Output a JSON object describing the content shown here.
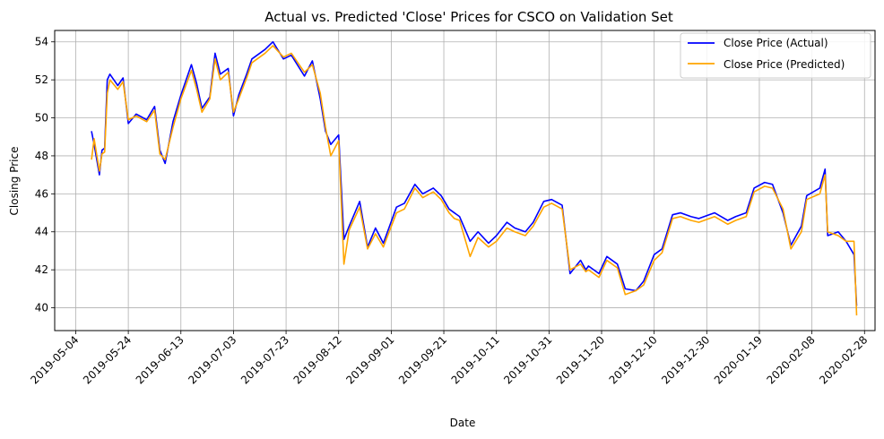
{
  "chart_data": {
    "type": "line",
    "title": "Actual vs. Predicted 'Close' Prices for CSCO on Validation Set",
    "xlabel": "Date",
    "ylabel": "Closing Price",
    "x_ticks": [
      "2019-05-04",
      "2019-05-24",
      "2019-06-13",
      "2019-07-03",
      "2019-07-23",
      "2019-08-12",
      "2019-09-01",
      "2019-09-21",
      "2019-10-11",
      "2019-10-31",
      "2019-11-20",
      "2019-12-10",
      "2019-12-30",
      "2020-01-19",
      "2020-02-08",
      "2020-02-28"
    ],
    "y_ticks": [
      40,
      42,
      44,
      46,
      48,
      50,
      52,
      54
    ],
    "xlim": [
      "2019-04-26",
      "2020-03-03"
    ],
    "ylim": [
      38.8,
      54.6
    ],
    "grid": true,
    "legend_position": "top-right",
    "colors": {
      "actual": "#0000ff",
      "predicted": "#ffa500"
    },
    "x": [
      "2019-05-10",
      "2019-05-11",
      "2019-05-13",
      "2019-05-14",
      "2019-05-15",
      "2019-05-16",
      "2019-05-17",
      "2019-05-20",
      "2019-05-22",
      "2019-05-24",
      "2019-05-27",
      "2019-05-31",
      "2019-06-03",
      "2019-06-05",
      "2019-06-07",
      "2019-06-10",
      "2019-06-13",
      "2019-06-17",
      "2019-06-19",
      "2019-06-21",
      "2019-06-24",
      "2019-06-26",
      "2019-06-28",
      "2019-07-01",
      "2019-07-03",
      "2019-07-05",
      "2019-07-08",
      "2019-07-10",
      "2019-07-15",
      "2019-07-18",
      "2019-07-22",
      "2019-07-25",
      "2019-07-30",
      "2019-08-02",
      "2019-08-05",
      "2019-08-07",
      "2019-08-09",
      "2019-08-12",
      "2019-08-14",
      "2019-08-16",
      "2019-08-20",
      "2019-08-23",
      "2019-08-26",
      "2019-08-29",
      "2019-09-03",
      "2019-09-06",
      "2019-09-10",
      "2019-09-13",
      "2019-09-17",
      "2019-09-20",
      "2019-09-23",
      "2019-09-25",
      "2019-09-27",
      "2019-10-01",
      "2019-10-04",
      "2019-10-08",
      "2019-10-11",
      "2019-10-15",
      "2019-10-18",
      "2019-10-22",
      "2019-10-25",
      "2019-10-29",
      "2019-11-01",
      "2019-11-05",
      "2019-11-08",
      "2019-11-12",
      "2019-11-14",
      "2019-11-15",
      "2019-11-19",
      "2019-11-22",
      "2019-11-26",
      "2019-11-29",
      "2019-12-03",
      "2019-12-06",
      "2019-12-10",
      "2019-12-13",
      "2019-12-17",
      "2019-12-20",
      "2019-12-24",
      "2019-12-27",
      "2020-01-02",
      "2020-01-07",
      "2020-01-10",
      "2020-01-14",
      "2020-01-17",
      "2020-01-21",
      "2020-01-24",
      "2020-01-28",
      "2020-01-31",
      "2020-02-04",
      "2020-02-06",
      "2020-02-11",
      "2020-02-13",
      "2020-02-14",
      "2020-02-18",
      "2020-02-21",
      "2020-02-24",
      "2020-02-25"
    ],
    "series": [
      {
        "name": "Close Price (Actual)",
        "values": [
          49.3,
          48.6,
          47.0,
          48.3,
          48.4,
          52.0,
          52.3,
          51.7,
          52.1,
          49.7,
          50.2,
          49.9,
          50.6,
          48.3,
          47.6,
          49.8,
          51.2,
          52.8,
          51.8,
          50.5,
          51.1,
          53.4,
          52.3,
          52.6,
          50.1,
          51.2,
          52.3,
          53.1,
          53.6,
          54.0,
          53.1,
          53.3,
          52.2,
          53.0,
          51.0,
          49.3,
          48.6,
          49.1,
          43.6,
          44.3,
          45.6,
          43.2,
          44.2,
          43.4,
          45.3,
          45.5,
          46.5,
          46.0,
          46.3,
          45.9,
          45.2,
          45.0,
          44.8,
          43.5,
          44.0,
          43.4,
          43.8,
          44.5,
          44.2,
          44.0,
          44.5,
          45.6,
          45.7,
          45.4,
          41.8,
          42.5,
          42.0,
          42.2,
          41.8,
          42.7,
          42.3,
          41.0,
          40.9,
          41.4,
          42.8,
          43.1,
          44.9,
          45.0,
          44.8,
          44.7,
          45.0,
          44.6,
          44.8,
          45.0,
          46.3,
          46.6,
          46.5,
          45.0,
          43.3,
          44.3,
          45.9,
          46.3,
          47.3,
          43.8,
          44.0,
          43.5,
          42.8,
          40.1
        ]
      },
      {
        "name": "Close Price (Predicted)",
        "values": [
          47.8,
          48.9,
          47.2,
          48.1,
          48.2,
          51.3,
          52.0,
          51.5,
          51.9,
          49.9,
          50.1,
          49.8,
          50.4,
          48.1,
          47.8,
          49.5,
          51.0,
          52.5,
          51.5,
          50.3,
          51.0,
          53.1,
          52.0,
          52.4,
          50.3,
          51.0,
          52.1,
          52.9,
          53.4,
          53.8,
          53.2,
          53.4,
          52.4,
          52.8,
          51.3,
          49.5,
          48.0,
          48.8,
          42.3,
          44.1,
          45.3,
          43.1,
          43.9,
          43.2,
          45.0,
          45.2,
          46.3,
          45.8,
          46.1,
          45.7,
          45.0,
          44.7,
          44.6,
          42.7,
          43.7,
          43.2,
          43.5,
          44.2,
          44.0,
          43.8,
          44.3,
          45.3,
          45.5,
          45.2,
          42.0,
          42.3,
          41.9,
          42.0,
          41.6,
          42.5,
          42.1,
          40.7,
          40.9,
          41.2,
          42.5,
          42.9,
          44.7,
          44.8,
          44.6,
          44.5,
          44.8,
          44.4,
          44.6,
          44.8,
          46.1,
          46.4,
          46.3,
          45.2,
          43.1,
          44.0,
          45.7,
          46.0,
          47.0,
          44.0,
          43.8,
          43.5,
          43.5,
          39.6
        ]
      }
    ]
  }
}
